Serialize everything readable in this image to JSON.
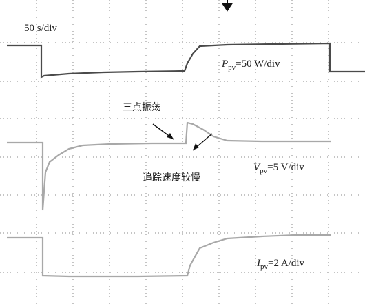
{
  "timebase": "50 s/div",
  "traces": [
    {
      "symbol": "P",
      "subscript": "pv",
      "scale": "=50 W/div"
    },
    {
      "symbol": "V",
      "subscript": "pv",
      "scale": "=5 V/div"
    },
    {
      "symbol": "I",
      "subscript": "pv",
      "scale": "=2 A/div"
    }
  ],
  "annotations": [
    "三点振荡",
    "追踪速度较慢"
  ]
}
